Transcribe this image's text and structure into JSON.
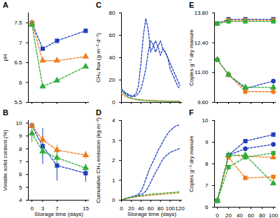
{
  "chart_data": [
    {
      "type": "line",
      "title": "A",
      "ylabel": "pH",
      "tick_labels": "y",
      "x": [
        0,
        3,
        7,
        15
      ],
      "xlim": [
        -1,
        16
      ],
      "xticks": [
        0,
        3,
        7,
        15
      ],
      "ylim": [
        5.5,
        7.75
      ],
      "yticks": [
        5.5,
        6.0,
        6.5,
        7.0,
        7.5
      ],
      "series": [
        {
          "color": "#1f3fbf",
          "marker": "square",
          "line_style": "dashed",
          "values": [
            7.5,
            6.85,
            7.05,
            7.3
          ]
        },
        {
          "color": "#f07c1e",
          "marker": "triangle",
          "line_style": "dashed",
          "values": [
            7.5,
            6.55,
            6.55,
            6.65
          ]
        },
        {
          "color": "#2fae3a",
          "marker": "triangle",
          "line_style": "dashed",
          "values": [
            7.45,
            5.9,
            6.05,
            6.4
          ]
        }
      ]
    },
    {
      "type": "line",
      "title": "B",
      "ylabel": "Volatile solid content (%)",
      "xlabel": "Storage time (days)",
      "x": [
        0,
        3,
        7,
        15
      ],
      "xlim": [
        -1,
        16
      ],
      "xticks": [
        0,
        3,
        7,
        15
      ],
      "ylim": [
        4,
        10.2
      ],
      "yticks": [
        4,
        5,
        6,
        7,
        8,
        9,
        10
      ],
      "series": [
        {
          "color": "#1f3fbf",
          "marker": "square",
          "line_style": "dashed",
          "values": [
            9.8,
            8.2,
            6.7,
            6.1
          ],
          "errors": [
            0.15,
            1.4,
            1.2,
            0.7
          ]
        },
        {
          "color": "#f07c1e",
          "marker": "triangle",
          "line_style": "dashed",
          "values": [
            9.8,
            8.7,
            7.9,
            7.5
          ],
          "errors": [
            0.1,
            0.3,
            0.4,
            0.3
          ]
        },
        {
          "color": "#2fae3a",
          "marker": "triangle",
          "line_style": "dashed",
          "values": [
            9.2,
            7.8,
            7.3,
            6.5
          ],
          "errors": [
            0.7,
            0.4,
            0.5,
            0.3
          ]
        }
      ]
    },
    {
      "type": "line",
      "title": "C",
      "ylabel": "CH₄ flux (g m⁻² d⁻¹)",
      "tick_labels": "y",
      "x": [
        0,
        5,
        10,
        15,
        20,
        25,
        30,
        35,
        40,
        45,
        50,
        55,
        60,
        65,
        70,
        75,
        80,
        85,
        90,
        95,
        100,
        105,
        110,
        115,
        120
      ],
      "xlim": [
        0,
        125
      ],
      "xticks": [
        0,
        20,
        40,
        60,
        80,
        100,
        120
      ],
      "ylim": [
        0,
        80
      ],
      "yticks": [
        0,
        20,
        40,
        60,
        80
      ],
      "series": [
        {
          "color": "#1f3fbf",
          "line_style": "dashed",
          "values": [
            12,
            10,
            8,
            7,
            6,
            6,
            8,
            15,
            35,
            60,
            75,
            65,
            45,
            50,
            55,
            50,
            42,
            48,
            45,
            40,
            30,
            25,
            20,
            15,
            12
          ]
        },
        {
          "color": "#1f3fbf",
          "line_style": "dashed",
          "values": [
            10,
            9,
            7,
            6,
            5,
            5,
            6,
            8,
            12,
            20,
            30,
            45,
            55,
            52,
            45,
            50,
            55,
            48,
            45,
            40,
            35,
            30,
            25,
            20,
            15
          ]
        },
        {
          "color": "#f07c1e",
          "line_style": "dashed",
          "values": [
            8,
            6,
            5,
            4,
            3.5,
            3,
            3,
            2.5,
            2.5,
            2,
            2,
            2,
            2,
            1.8,
            1.8,
            1.5,
            1.5,
            1.5,
            1.2,
            1.2,
            1,
            1,
            1,
            1,
            1
          ]
        },
        {
          "color": "#2fae3a",
          "line_style": "dashed",
          "values": [
            11,
            8,
            6,
            4.5,
            3.5,
            3,
            2.5,
            2,
            2,
            1.8,
            1.5,
            1.5,
            1.2,
            1.2,
            1,
            1,
            1,
            1,
            1,
            0.8,
            0.8,
            0.8,
            0.8,
            0.8,
            0.8
          ]
        }
      ]
    },
    {
      "type": "line",
      "title": "D",
      "ylabel": "Cumulative CH₄ emission (kg m⁻²)",
      "xlabel": "Storage time (days)",
      "x": [
        0,
        5,
        10,
        15,
        20,
        25,
        30,
        35,
        40,
        45,
        50,
        55,
        60,
        65,
        70,
        75,
        80,
        85,
        90,
        95,
        100,
        105,
        110,
        115,
        120
      ],
      "xlim": [
        0,
        125
      ],
      "xticks": [
        0,
        20,
        40,
        60,
        80,
        100,
        120
      ],
      "ylim": [
        0,
        4
      ],
      "yticks": [
        0,
        1,
        2,
        3,
        4
      ],
      "series": [
        {
          "color": "#1f3fbf",
          "line_style": "dashed",
          "values": [
            0,
            0.06,
            0.1,
            0.14,
            0.17,
            0.2,
            0.24,
            0.3,
            0.45,
            0.7,
            1.05,
            1.4,
            1.7,
            1.95,
            2.2,
            2.5,
            2.7,
            2.95,
            3.15,
            3.35,
            3.5,
            3.6,
            3.7,
            3.75,
            3.8
          ]
        },
        {
          "color": "#1f3fbf",
          "line_style": "dashed",
          "values": [
            0,
            0.05,
            0.09,
            0.12,
            0.15,
            0.17,
            0.2,
            0.24,
            0.28,
            0.35,
            0.45,
            0.65,
            0.9,
            1.15,
            1.4,
            1.6,
            1.85,
            2.05,
            2.2,
            2.3,
            2.4,
            2.45,
            2.5,
            2.55,
            2.6
          ]
        },
        {
          "color": "#f07c1e",
          "line_style": "dashed",
          "values": [
            0,
            0.04,
            0.07,
            0.1,
            0.12,
            0.14,
            0.16,
            0.18,
            0.2,
            0.21,
            0.22,
            0.24,
            0.25,
            0.26,
            0.27,
            0.28,
            0.29,
            0.3,
            0.31,
            0.32,
            0.33,
            0.34,
            0.35,
            0.36,
            0.37
          ]
        },
        {
          "color": "#2fae3a",
          "line_style": "dashed",
          "values": [
            0,
            0.05,
            0.09,
            0.12,
            0.15,
            0.17,
            0.19,
            0.21,
            0.23,
            0.25,
            0.27,
            0.28,
            0.3,
            0.31,
            0.32,
            0.33,
            0.34,
            0.35,
            0.36,
            0.37,
            0.38,
            0.39,
            0.4,
            0.41,
            0.42
          ]
        }
      ]
    },
    {
      "type": "line",
      "title": "E",
      "ylabel": "Copies g⁻¹ dry manure",
      "tick_labels": "y",
      "x": [
        0,
        20,
        50,
        100
      ],
      "xlim": [
        -5,
        105
      ],
      "xticks": [
        0,
        20,
        40,
        60,
        80,
        100
      ],
      "ylim": [
        9.6,
        13.8
      ],
      "yticks": [
        {
          "value": 9.6,
          "label": "9.60"
        },
        {
          "value": 11.0,
          "label": "11.00"
        },
        {
          "value": 12.4,
          "label": "12.40"
        },
        {
          "value": 13.8,
          "label": "13.80"
        }
      ],
      "series": [
        {
          "color": "#1f3fbf",
          "marker": "square",
          "line_style": "dashed",
          "values": [
            13.3,
            13.5,
            13.5,
            13.5
          ]
        },
        {
          "color": "#f07c1e",
          "marker": "square",
          "line_style": "dashed",
          "values": [
            13.3,
            13.45,
            13.45,
            13.45
          ]
        },
        {
          "color": "#2fae3a",
          "marker": "square",
          "line_style": "dashed",
          "values": [
            13.3,
            13.4,
            13.4,
            13.4
          ]
        },
        {
          "color": "#1f3fbf",
          "marker": "circle",
          "line_style": "dashed",
          "values": [
            11.6,
            10.9,
            10.25,
            10.6
          ]
        },
        {
          "color": "#f07c1e",
          "marker": "circle",
          "line_style": "dashed",
          "values": [
            11.6,
            10.9,
            10.1,
            10.1
          ]
        },
        {
          "color": "#2fae3a",
          "marker": "triangle",
          "line_style": "dashed",
          "values": [
            11.6,
            10.9,
            10.3,
            10.3
          ]
        }
      ]
    },
    {
      "type": "line",
      "title": "F",
      "ylabel": "Copies g⁻¹ dry manure",
      "x": [
        0,
        20,
        50,
        100
      ],
      "xlim": [
        -5,
        105
      ],
      "xticks": [
        0,
        20,
        40,
        60,
        80,
        100
      ],
      "ylim": [
        6,
        10
      ],
      "yticks": [
        6,
        7,
        8,
        9,
        10
      ],
      "series": [
        {
          "color": "#1f3fbf",
          "marker": "square",
          "line_style": "dashed",
          "values": [
            6.3,
            8.4,
            9.05,
            9.35
          ]
        },
        {
          "color": "#1f3fbf",
          "marker": "circle",
          "line_style": "dashed",
          "values": [
            6.3,
            8.4,
            8.7,
            8.9
          ]
        },
        {
          "color": "#f07c1e",
          "marker": "square",
          "line_style": "dashed",
          "values": [
            6.3,
            8.3,
            7.35,
            7.4
          ]
        },
        {
          "color": "#f07c1e",
          "marker": "triangle",
          "line_style": "dashed",
          "values": [
            6.3,
            8.4,
            8.35,
            8.3
          ]
        },
        {
          "color": "#2fae3a",
          "marker": "square",
          "line_style": "dashed",
          "values": [
            6.3,
            7.85,
            8.3,
            8.5
          ]
        },
        {
          "color": "#2fae3a",
          "marker": "triangle",
          "line_style": "dashed",
          "values": [
            6.3,
            8.4,
            8.4,
            7.1
          ]
        }
      ]
    }
  ]
}
